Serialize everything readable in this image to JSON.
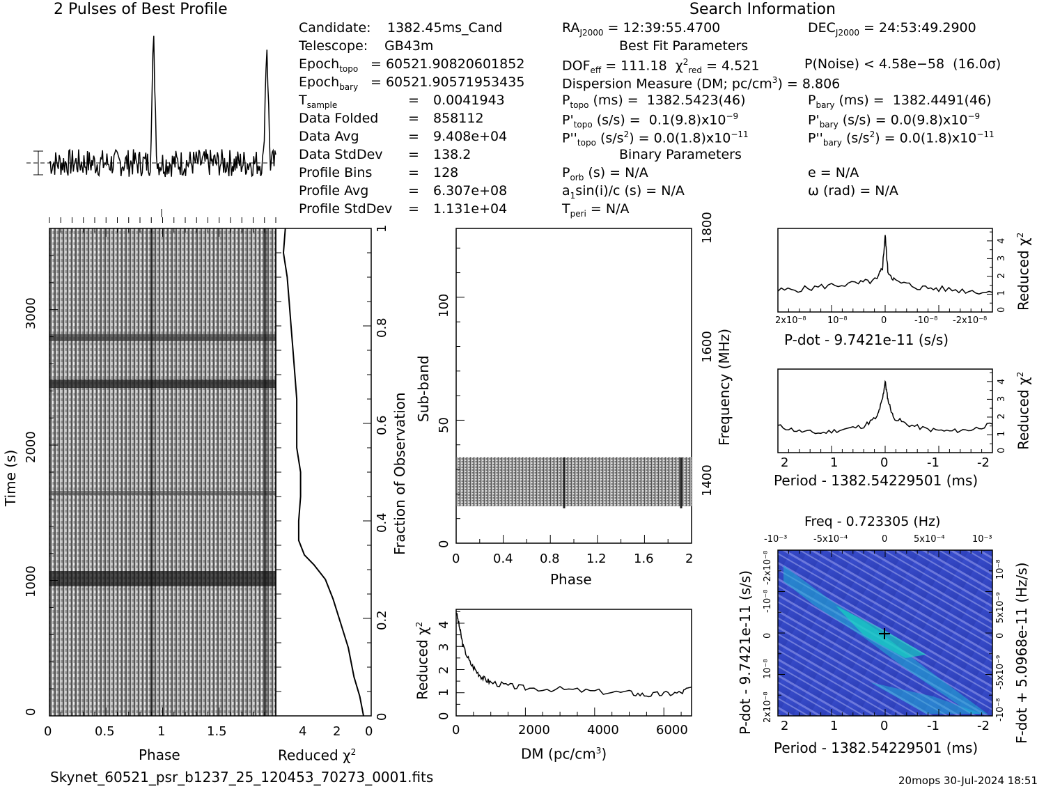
{
  "header": {
    "title_left": "2 Pulses of Best Profile",
    "title_right": "Search Information"
  },
  "info_left": [
    {
      "k": "Candidate:",
      "v": "1382.45ms_Cand"
    },
    {
      "k": "Telescope:",
      "v": "GB43m"
    },
    {
      "k": "Epoch_topo",
      "v": "= 60521.90820601852"
    },
    {
      "k": "Epoch_bary",
      "v": "= 60521.90571953435"
    },
    {
      "k": "T_sample",
      "v": "0.0041943"
    },
    {
      "k": "Data Folded",
      "v": "858112"
    },
    {
      "k": "Data Avg",
      "v": "9.408e+04"
    },
    {
      "k": "Data StdDev",
      "v": "138.2"
    },
    {
      "k": "Profile Bins",
      "v": "128"
    },
    {
      "k": "Profile Avg",
      "v": "6.307e+08"
    },
    {
      "k": "Profile StdDev",
      "v": "1.131e+04"
    }
  ],
  "info_mid": {
    "ra": "RA_J2000 = 12:39:55.4700",
    "best_fit_title": "Best Fit Parameters",
    "dof": "DOF_eff = 111.18",
    "chi2": "χ² red = 4.521",
    "dm": "Dispersion Measure (DM; pc/cm³) = 8.806",
    "ptopo": "P_topo (ms) = 1382.5423(46)",
    "pdtopo": "P'_topo (s/s) = 0.1(9.8)x10⁻⁹",
    "pddtopo": "P''_topo (s/s²) = 0.0(1.8)x10⁻¹¹",
    "binary_title": "Binary Parameters",
    "porb": "P_orb (s) = N/A",
    "a1": "a1sin(i)/c (s) = N/A",
    "tperi": "T_peri = N/A"
  },
  "info_right": {
    "dec": "DEC_J2000 = 24:53:49.2900",
    "pnoise": "P(Noise) < 4.58e-58 (16.0σ)",
    "pbary": "P_bary (ms) = 1382.4491(46)",
    "pdbary": "P'_bary (s/s) = 0.0(9.8)x10⁻⁹",
    "pddbary": "P''_bary (s/s²) = 0.0(1.8)x10⁻¹¹",
    "e": "e = N/A",
    "omega": "ω (rad) = N/A"
  },
  "footer": {
    "filename": "Skynet_60521_psr_b1237_25_120453_70273_0001.fits",
    "stamp": "20mops 30-Jul-2024 18:51"
  },
  "chart_data": [
    {
      "type": "line",
      "title": "2 Pulses of Best Profile",
      "x_range": [
        0,
        2
      ],
      "peaks_at_phase": [
        0.92,
        1.92
      ]
    },
    {
      "type": "heatmap",
      "name": "time-vs-phase",
      "xlabel": "Phase",
      "ylabel": "Time (s)",
      "xticks": [
        "0",
        "0.5",
        "1",
        "1.5"
      ],
      "yticks": [
        "0",
        "1000",
        "2000",
        "3000"
      ],
      "xlim": [
        0,
        2
      ],
      "ylim": [
        0,
        3600
      ]
    },
    {
      "type": "line",
      "name": "reduced-chi2-vs-fraction",
      "xlabel": "Reduced χ²",
      "ylabel": "Fraction of Observation",
      "xticks": [
        "4",
        "2",
        "0"
      ],
      "yticks": [
        "0",
        "0.2",
        "0.4",
        "0.6",
        "0.8",
        "1"
      ],
      "points": [
        [
          0.4,
          0
        ],
        [
          0.6,
          0.04
        ],
        [
          0.9,
          0.08
        ],
        [
          1.2,
          0.14
        ],
        [
          1.6,
          0.19
        ],
        [
          2.0,
          0.24
        ],
        [
          2.4,
          0.28
        ],
        [
          3.0,
          0.31
        ],
        [
          3.5,
          0.33
        ],
        [
          3.8,
          0.36
        ],
        [
          3.8,
          0.4
        ],
        [
          3.7,
          0.45
        ],
        [
          3.7,
          0.5
        ],
        [
          3.9,
          0.55
        ],
        [
          3.9,
          0.6
        ],
        [
          3.9,
          0.65
        ],
        [
          4.0,
          0.7
        ],
        [
          4.1,
          0.75
        ],
        [
          4.2,
          0.8
        ],
        [
          4.3,
          0.85
        ],
        [
          4.4,
          0.9
        ],
        [
          4.6,
          0.95
        ],
        [
          4.5,
          1.0
        ]
      ]
    },
    {
      "type": "heatmap",
      "name": "subband-vs-phase",
      "xlabel": "Phase",
      "ylabel": "Sub-band",
      "y2label": "Frequency (MHz)",
      "xticks": [
        "0",
        "0.4",
        "0.8",
        "1.2",
        "1.6",
        "2"
      ],
      "yticks": [
        "0",
        "50",
        "100"
      ],
      "y2ticks": [
        "1400",
        "1600",
        "1800"
      ],
      "xlim": [
        0,
        2
      ],
      "ylim": [
        0,
        128
      ],
      "band_rows": [
        15,
        35
      ]
    },
    {
      "type": "line",
      "name": "dm-curve",
      "xlabel": "DM (pc/cm³)",
      "ylabel": "Reduced χ²",
      "xticks": [
        "0",
        "2000",
        "4000",
        "6000"
      ],
      "yticks": [
        "0",
        "1",
        "2",
        "3",
        "4"
      ],
      "xlim": [
        0,
        6800
      ],
      "ylim": [
        0,
        4.6
      ],
      "points": [
        [
          0,
          4.5
        ],
        [
          100,
          3.8
        ],
        [
          200,
          3.0
        ],
        [
          400,
          2.3
        ],
        [
          600,
          1.9
        ],
        [
          800,
          1.6
        ],
        [
          1000,
          1.45
        ],
        [
          1500,
          1.3
        ],
        [
          2000,
          1.2
        ],
        [
          3000,
          1.15
        ],
        [
          4000,
          1.05
        ],
        [
          5000,
          1.0
        ],
        [
          5500,
          0.9
        ],
        [
          6000,
          0.95
        ],
        [
          6500,
          1.0
        ],
        [
          6800,
          1.25
        ]
      ]
    },
    {
      "type": "line",
      "name": "pdot-curve",
      "xlabel": "P-dot - 9.7421e-11 (s/s)",
      "ylabel": "Reduced χ²",
      "xticks": [
        "2x10⁻⁸",
        "10⁻⁸",
        "0",
        "-10⁻⁸",
        "-2x10⁻⁸"
      ],
      "yticks": [
        "0",
        "1",
        "2",
        "3",
        "4"
      ],
      "ylim": [
        0,
        4.7
      ],
      "points": [
        [
          2.0,
          1.2
        ],
        [
          1.5,
          1.3
        ],
        [
          1.0,
          1.5
        ],
        [
          0.5,
          1.6
        ],
        [
          0.15,
          1.8
        ],
        [
          0.05,
          2.5
        ],
        [
          0,
          4.3
        ],
        [
          -0.05,
          2.3
        ],
        [
          -0.2,
          1.7
        ],
        [
          -0.6,
          1.4
        ],
        [
          -1.0,
          1.3
        ],
        [
          -1.5,
          1.2
        ],
        [
          -2.0,
          1.1
        ]
      ]
    },
    {
      "type": "line",
      "name": "period-curve",
      "xlabel": "Period - 1382.54229501 (ms)",
      "ylabel": "Reduced χ²",
      "xticks": [
        "2",
        "1",
        "0",
        "-1",
        "-2"
      ],
      "yticks": [
        "0",
        "1",
        "2",
        "3",
        "4"
      ],
      "ylim": [
        0,
        4.7
      ],
      "points": [
        [
          2.0,
          1.5
        ],
        [
          1.6,
          1.2
        ],
        [
          1.2,
          1.1
        ],
        [
          0.8,
          1.3
        ],
        [
          0.4,
          1.5
        ],
        [
          0.15,
          2.0
        ],
        [
          0.05,
          3.0
        ],
        [
          0,
          4.0
        ],
        [
          -0.05,
          3.0
        ],
        [
          -0.15,
          2.0
        ],
        [
          -0.4,
          1.6
        ],
        [
          -0.8,
          1.3
        ],
        [
          -1.2,
          1.2
        ],
        [
          -1.6,
          1.3
        ],
        [
          -2.0,
          1.6
        ]
      ]
    },
    {
      "type": "heatmap",
      "name": "period-pdot-plane",
      "title": "Freq - 0.723305 (Hz)",
      "xlabel": "Period - 1382.54229501 (ms)",
      "ylabel": "P-dot - 9.7421e-11 (s/s)",
      "y2label": "F-dot + 5.0968e-11 (Hz/s)",
      "xticks": [
        "2",
        "1",
        "0",
        "-1",
        "-2"
      ],
      "x2ticks": [
        "-10⁻³",
        "-5x10⁻⁴",
        "0",
        "5x10⁻⁴",
        "10⁻³"
      ],
      "yticks": [
        "2x10⁻⁸",
        "10⁻⁸",
        "0",
        "-10⁻⁸",
        "-2x10⁻⁸"
      ],
      "y2ticks": [
        "-10⁻⁸",
        "-5x10⁻⁹",
        "0",
        "5x10⁻⁹",
        "10⁻⁸"
      ],
      "best": [
        0,
        0
      ]
    }
  ]
}
